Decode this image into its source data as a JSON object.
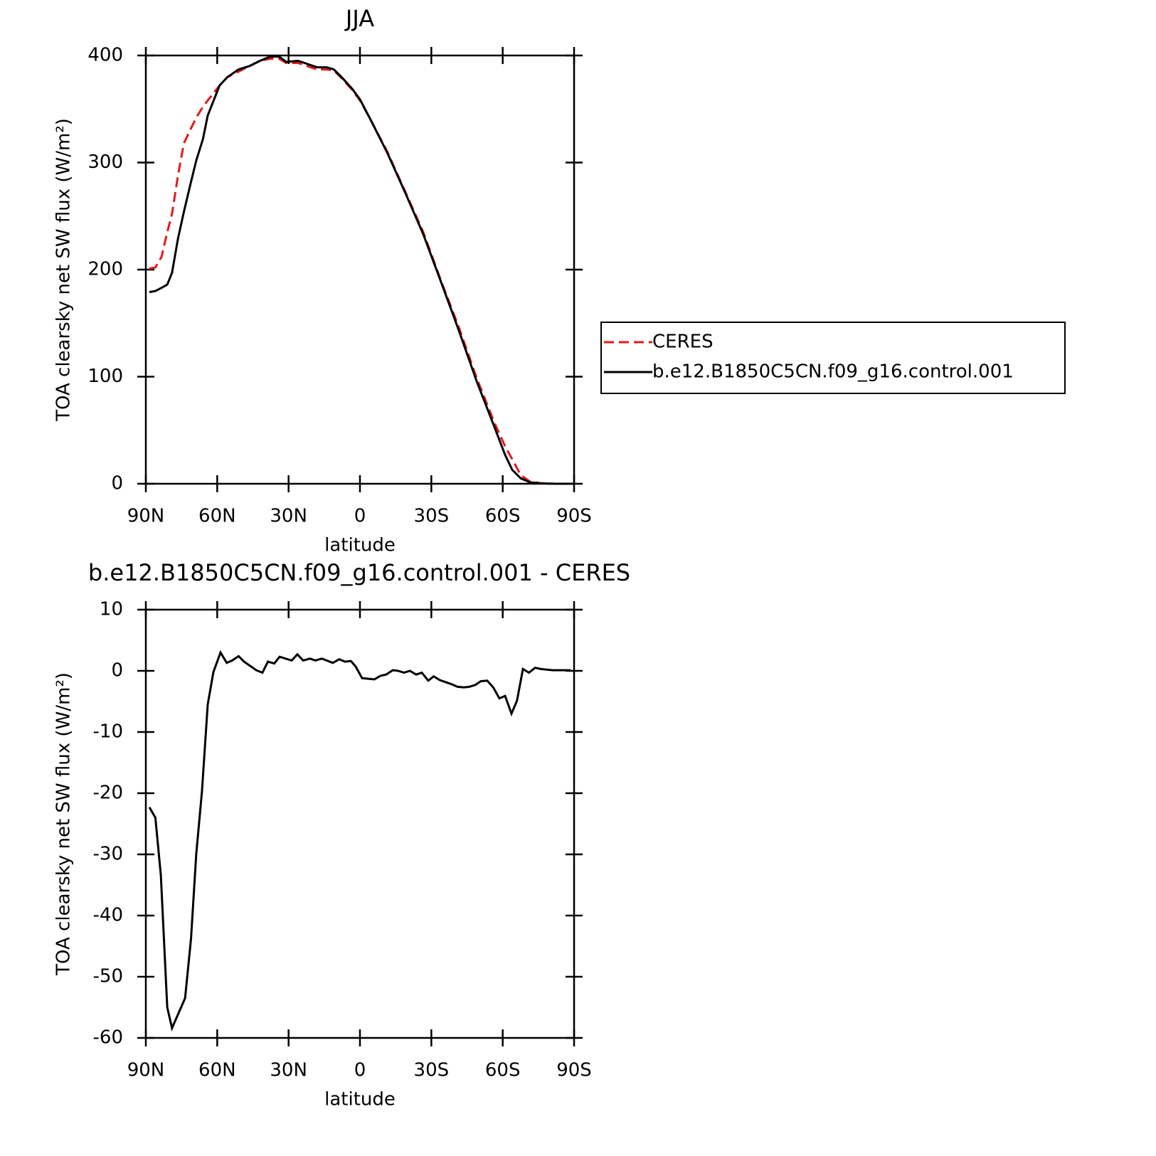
{
  "chart_data": [
    {
      "type": "line",
      "title": "JJA",
      "xlabel": "latitude",
      "ylabel": "TOA clearsky net SW flux (W/m²)",
      "x": [
        88.5,
        86,
        83.4,
        81,
        79,
        76.5,
        74,
        71,
        68.8,
        66,
        64,
        59,
        55.6,
        51,
        46.6,
        42,
        37.7,
        34,
        31,
        26,
        22,
        18,
        14,
        11,
        7.8,
        3.3,
        0,
        -4,
        -11.5,
        -19,
        -26.6,
        -34,
        -41.6,
        -49,
        -56.5,
        -61,
        -64,
        -67.6,
        -71.5,
        -76,
        -82,
        -89.4
      ],
      "series": [
        {
          "name": "CERES",
          "color": "#e41a1c",
          "dash": true,
          "values": [
            201,
            202,
            212,
            235,
            252,
            288,
            318,
            332,
            342,
            352,
            358,
            372,
            380,
            385,
            390,
            395,
            397,
            397,
            393,
            393,
            390,
            387,
            387,
            386,
            379,
            368,
            358,
            342,
            310,
            273,
            235,
            190,
            146,
            99,
            57,
            35,
            23,
            8,
            2,
            0.5,
            0,
            0
          ]
        },
        {
          "name": "b.e12.B1850C5CN.f09_g16.control.001",
          "color": "#000000",
          "dash": false,
          "values": [
            179,
            180,
            183,
            186,
            197,
            229,
            254,
            282,
            302,
            322,
            344,
            372,
            380,
            387,
            390,
            395,
            399,
            399,
            394,
            395,
            392,
            389,
            389,
            387,
            380,
            369,
            359,
            342,
            309,
            272,
            233,
            189,
            143,
            96,
            53,
            27,
            13,
            5,
            1.3,
            0.3,
            0,
            0
          ]
        }
      ],
      "xlim": [
        90,
        -90
      ],
      "xticks": [
        {
          "value": 90,
          "label": "90N"
        },
        {
          "value": 60,
          "label": "60N"
        },
        {
          "value": 30,
          "label": "30N"
        },
        0,
        {
          "value": -30,
          "label": "30S"
        },
        {
          "value": -60,
          "label": "60S"
        },
        {
          "value": -90,
          "label": "90S"
        }
      ],
      "ylim": [
        0,
        400
      ],
      "yticks": [
        0,
        100,
        200,
        300,
        400
      ],
      "legend": "right"
    },
    {
      "type": "line",
      "title": "b.e12.B1850C5CN.f09_g16.control.001 - CERES",
      "xlabel": "latitude",
      "ylabel": "TOA clearsky net SW flux (W/m²)",
      "x": [
        88.5,
        86,
        83.7,
        81,
        79,
        73.5,
        71,
        68.8,
        66.4,
        64,
        61.6,
        58.6,
        56,
        53.7,
        51,
        48.7,
        43.6,
        41,
        38.7,
        36,
        33.8,
        28.7,
        26.3,
        23.9,
        21,
        18.8,
        16,
        11.4,
        8.7,
        6.3,
        3.8,
        1.8,
        -0.9,
        -6,
        -8.7,
        -11,
        -13.8,
        -16,
        -18.5,
        -21,
        -23.6,
        -26,
        -28.7,
        -31,
        -33.5,
        -38.6,
        -41,
        -43.7,
        -46,
        -48.5,
        -50.8,
        -53.5,
        -56,
        -58.6,
        -61,
        -63.7,
        -66,
        -68.5,
        -71,
        -73.6,
        -76,
        -81,
        -88.6
      ],
      "series": [
        {
          "name": "b.e12.B1850C5CN.f09_g16.control.001 - CERES",
          "color": "#000000",
          "dash": false,
          "values": [
            -22.3,
            -24,
            -33.4,
            -55,
            -58.4,
            -53.5,
            -43.8,
            -29.9,
            -19.7,
            -5.5,
            -0.2,
            3,
            1.3,
            1.7,
            2.4,
            1.5,
            0.1,
            -0.3,
            1.5,
            1.2,
            2.3,
            1.7,
            2.7,
            1.7,
            2.0,
            1.7,
            2.0,
            1.3,
            1.9,
            1.5,
            1.6,
            0.7,
            -1.2,
            -1.4,
            -0.8,
            -0.6,
            0.1,
            0,
            -0.3,
            0,
            -0.6,
            -0.3,
            -1.6,
            -0.9,
            -1.5,
            -2.2,
            -2.6,
            -2.7,
            -2.6,
            -2.3,
            -1.7,
            -1.6,
            -2.7,
            -4.5,
            -4.1,
            -7,
            -4.9,
            0.3,
            -0.3,
            0.5,
            0.3,
            0.1,
            0.1
          ]
        }
      ],
      "xlim": [
        90,
        -90
      ],
      "xticks": [
        {
          "value": 90,
          "label": "90N"
        },
        {
          "value": 60,
          "label": "60N"
        },
        {
          "value": 30,
          "label": "30N"
        },
        0,
        {
          "value": -30,
          "label": "30S"
        },
        {
          "value": -60,
          "label": "60S"
        },
        {
          "value": -90,
          "label": "90S"
        }
      ],
      "ylim": [
        -60,
        10
      ],
      "yticks": [
        -60,
        -50,
        -40,
        -30,
        -20,
        -10,
        0,
        10
      ]
    }
  ]
}
